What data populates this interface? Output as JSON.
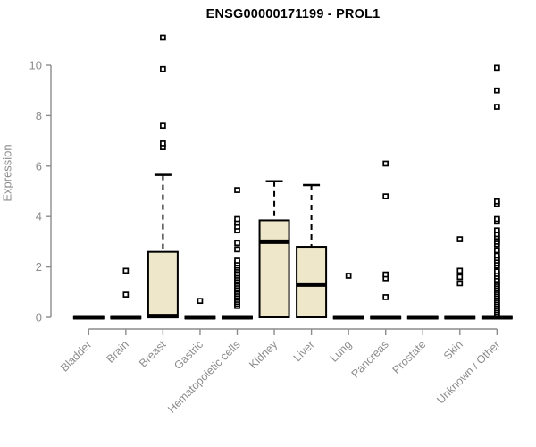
{
  "title": "ENSG00000171199 - PROL1",
  "colors": {
    "box_fill": "#EEE7C9",
    "box_stroke": "#000000",
    "median": "#000000",
    "axis": "#8c8c8c",
    "tick_text": "#8c8c8c",
    "title_text": "#000000",
    "outlier_fill": "#ffffff",
    "background": "#ffffff"
  },
  "chart_data": {
    "type": "boxplot",
    "title": "ENSG00000171199 - PROL1",
    "xlabel": "",
    "ylabel": "Expression",
    "ylim": [
      0,
      10
    ],
    "yticks": [
      0,
      2,
      4,
      6,
      8,
      10
    ],
    "grid": false,
    "legend": "none",
    "categories": [
      "Bladder",
      "Brain",
      "Breast",
      "Gastric",
      "Hematopoietic cells",
      "Kidney",
      "Liver",
      "Lung",
      "Pancreas",
      "Prostate",
      "Skin",
      "Unknown / Other"
    ],
    "series": [
      {
        "name": "Bladder",
        "q1": 0,
        "median": 0,
        "q3": 0,
        "whisker_low": 0,
        "whisker_high": 0,
        "outliers": []
      },
      {
        "name": "Brain",
        "q1": 0,
        "median": 0,
        "q3": 0,
        "whisker_low": 0,
        "whisker_high": 0,
        "outliers": [
          0.9,
          1.85
        ]
      },
      {
        "name": "Breast",
        "q1": 0,
        "median": 0.05,
        "q3": 2.6,
        "whisker_low": 0,
        "whisker_high": 5.65,
        "outliers": [
          6.75,
          6.9,
          7.6,
          9.85,
          11.1
        ]
      },
      {
        "name": "Gastric",
        "q1": 0,
        "median": 0,
        "q3": 0,
        "whisker_low": 0,
        "whisker_high": 0,
        "outliers": [
          0.65
        ]
      },
      {
        "name": "Hematopoietic cells",
        "q1": 0,
        "median": 0,
        "q3": 0,
        "whisker_low": 0,
        "whisker_high": 0,
        "outliers": [
          0.45,
          0.53,
          0.61,
          0.69,
          0.77,
          0.85,
          0.93,
          1.01,
          1.09,
          1.17,
          1.25,
          1.33,
          1.41,
          1.49,
          1.57,
          1.65,
          1.73,
          1.81,
          1.89,
          1.97,
          2.05,
          2.15,
          2.25,
          2.7,
          2.95,
          3.45,
          3.6,
          3.75,
          3.9,
          5.05
        ]
      },
      {
        "name": "Kidney",
        "q1": 0,
        "median": 3.0,
        "q3": 3.85,
        "whisker_low": 0,
        "whisker_high": 5.4,
        "outliers": []
      },
      {
        "name": "Liver",
        "q1": 0,
        "median": 1.3,
        "q3": 2.8,
        "whisker_low": 0,
        "whisker_high": 5.25,
        "outliers": []
      },
      {
        "name": "Lung",
        "q1": 0,
        "median": 0,
        "q3": 0,
        "whisker_low": 0,
        "whisker_high": 0,
        "outliers": [
          1.65
        ]
      },
      {
        "name": "Pancreas",
        "q1": 0,
        "median": 0,
        "q3": 0,
        "whisker_low": 0,
        "whisker_high": 0,
        "outliers": [
          0.8,
          1.55,
          1.7,
          4.8,
          6.1
        ]
      },
      {
        "name": "Prostate",
        "q1": 0,
        "median": 0,
        "q3": 0,
        "whisker_low": 0,
        "whisker_high": 0,
        "outliers": []
      },
      {
        "name": "Skin",
        "q1": 0,
        "median": 0,
        "q3": 0,
        "whisker_low": 0,
        "whisker_high": 0,
        "outliers": [
          1.35,
          1.6,
          1.85,
          3.1
        ]
      },
      {
        "name": "Unknown / Other",
        "q1": 0,
        "median": 0,
        "q3": 0,
        "whisker_low": 0,
        "whisker_high": 0,
        "outliers": [
          0.12,
          0.2,
          0.28,
          0.36,
          0.44,
          0.52,
          0.6,
          0.68,
          0.76,
          0.84,
          0.92,
          1.0,
          1.08,
          1.16,
          1.24,
          1.32,
          1.4,
          1.5,
          1.62,
          1.72,
          1.82,
          2.05,
          2.15,
          2.25,
          2.35,
          2.45,
          2.66,
          2.9,
          3.0,
          3.1,
          3.2,
          3.3,
          3.45,
          3.8,
          3.9,
          4.5,
          4.6,
          8.35,
          9.0,
          9.9
        ]
      }
    ]
  }
}
